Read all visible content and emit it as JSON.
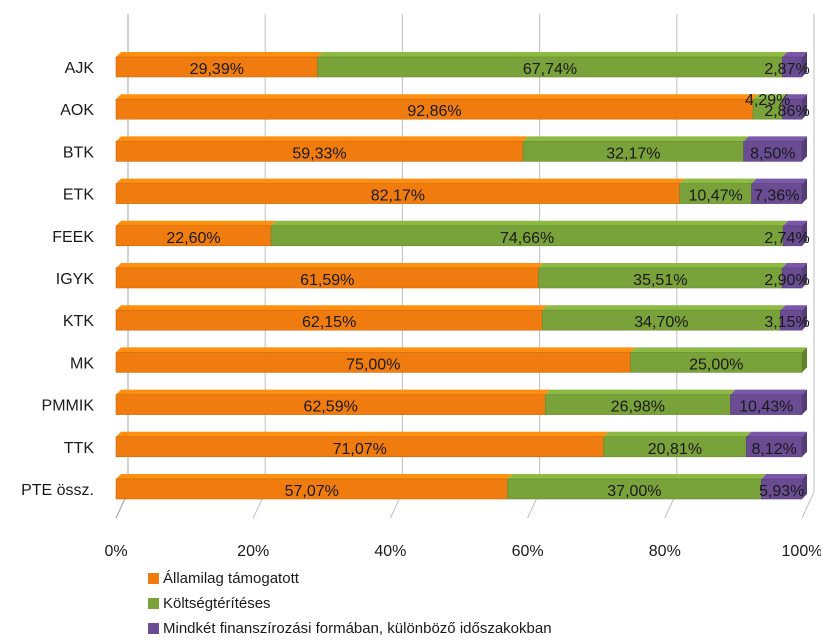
{
  "chart_data": {
    "type": "bar",
    "orientation": "horizontal",
    "stacked": "percent",
    "categories": [
      "AJK",
      "AOK",
      "BTK",
      "ETK",
      "FEEK",
      "IGYK",
      "KTK",
      "MK",
      "PMMIK",
      "TTK",
      "PTE össz."
    ],
    "series": [
      {
        "name": "Államilag támogatott",
        "color": "#f07c0f",
        "values": [
          29.39,
          92.86,
          59.33,
          82.17,
          22.6,
          61.59,
          62.15,
          75.0,
          62.59,
          71.07,
          57.07
        ],
        "labels": [
          "29,39%",
          "92,86%",
          "59,33%",
          "82,17%",
          "22,60%",
          "61,59%",
          "62,15%",
          "75,00%",
          "62,59%",
          "71,07%",
          "57,07%"
        ]
      },
      {
        "name": "Költségtérítéses",
        "color": "#7aa23a",
        "values": [
          67.74,
          4.29,
          32.17,
          10.47,
          74.66,
          35.51,
          34.7,
          25.0,
          26.98,
          20.81,
          37.0
        ],
        "labels": [
          "67,74%",
          "4,29%",
          "32,17%",
          "10,47%",
          "74,66%",
          "35,51%",
          "34,70%",
          "25,00%",
          "26,98%",
          "20,81%",
          "37,00%"
        ]
      },
      {
        "name": "Mindkét finanszírozási formában, különböző időszakokban",
        "color": "#6a4c93",
        "values": [
          2.87,
          2.86,
          8.5,
          7.36,
          2.74,
          2.9,
          3.15,
          0,
          10.43,
          8.12,
          5.93
        ],
        "labels": [
          "2,87%",
          "2,86%",
          "8,50%",
          "7,36%",
          "2,74%",
          "2,90%",
          "3,15%",
          "",
          "10,43%",
          "8,12%",
          "5,93%"
        ]
      }
    ],
    "x_ticks": [
      "0%",
      "20%",
      "40%",
      "60%",
      "80%",
      "100%"
    ],
    "xlim": [
      0,
      100
    ],
    "grid": true,
    "legend_position": "bottom-left",
    "title": "",
    "xlabel": "",
    "ylabel": ""
  }
}
